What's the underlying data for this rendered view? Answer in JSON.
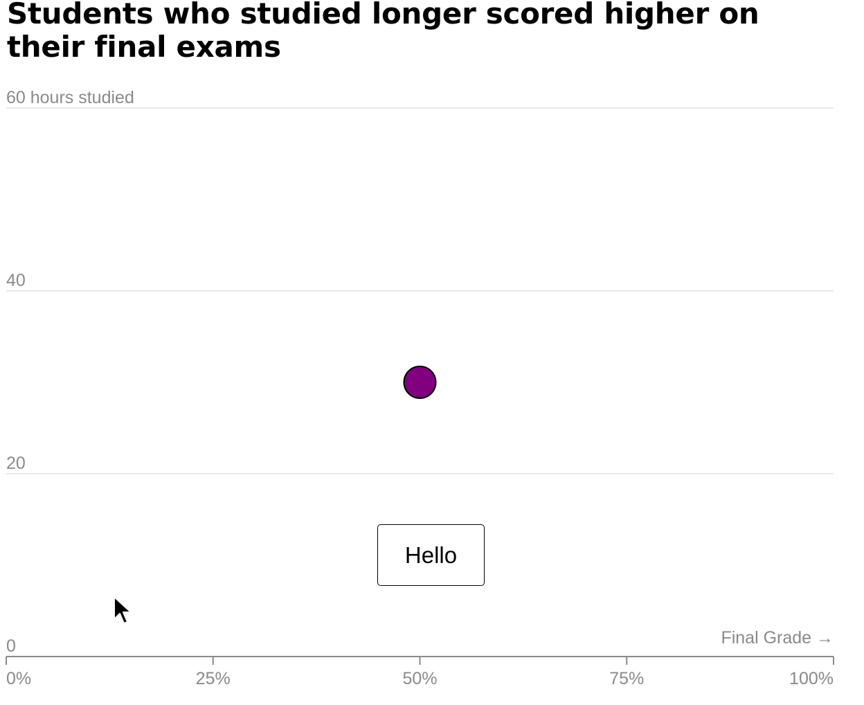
{
  "title": "Students who studied longer scored higher on their final exams",
  "tooltip": {
    "text": "Hello"
  },
  "cursor": {
    "icon": "mouse-pointer-icon"
  },
  "chart_data": {
    "type": "scatter",
    "title": "Students who studied longer scored higher on their final exams",
    "xlabel": "Final Grade →",
    "ylabel": "hours studied",
    "xlim": [
      0,
      100
    ],
    "ylim": [
      0,
      60
    ],
    "x_ticks": [
      {
        "value": 0,
        "label": "0%"
      },
      {
        "value": 25,
        "label": "25%"
      },
      {
        "value": 50,
        "label": "50%"
      },
      {
        "value": 75,
        "label": "75%"
      },
      {
        "value": 100,
        "label": "100%"
      }
    ],
    "y_ticks": [
      {
        "value": 0,
        "label": "0"
      },
      {
        "value": 20,
        "label": "20"
      },
      {
        "value": 40,
        "label": "40"
      },
      {
        "value": 60,
        "label": "60 hours studied"
      }
    ],
    "grid": true,
    "legend": "none",
    "point_color": "#800080",
    "series": [
      {
        "points": [
          {
            "x": 50,
            "y": 30
          }
        ]
      }
    ]
  }
}
